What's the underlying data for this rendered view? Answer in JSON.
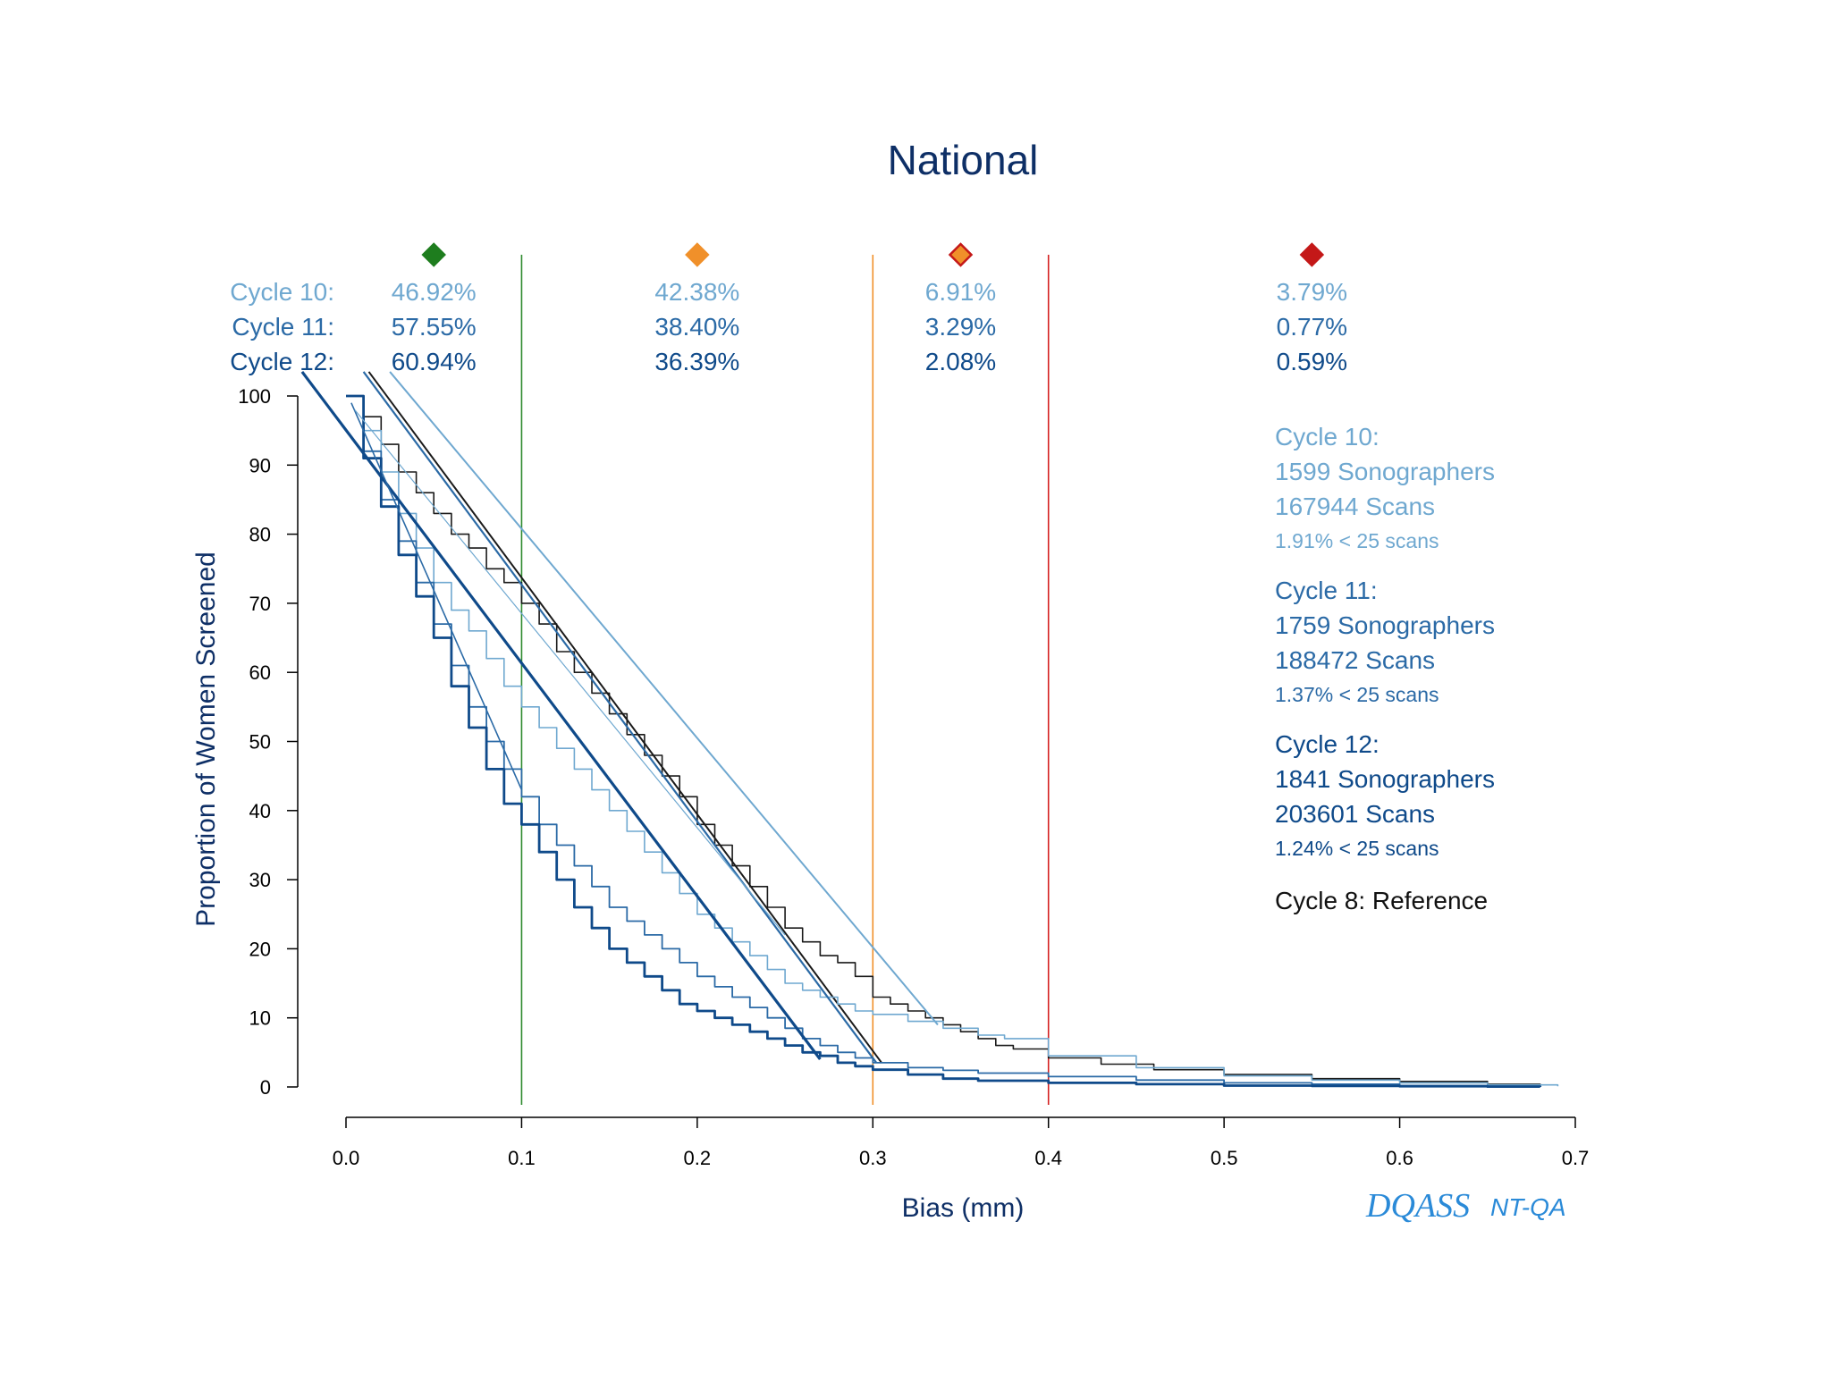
{
  "colors": {
    "cycle8": "#1a1a1a",
    "cycle10": "#6fa8d0",
    "cycle11": "#2b6aa6",
    "cycle12": "#0f4a8a",
    "title": "#0e2f66",
    "brand": "#2a8ad8",
    "line_green": "#2e8b2e",
    "line_orange": "#f0902a",
    "line_red": "#d42020"
  },
  "chart_data": {
    "type": "line",
    "title": "National",
    "xlabel": "Bias (mm)",
    "ylabel": "Proportion of Women Screened",
    "xlim": [
      0,
      0.7
    ],
    "ylim": [
      0,
      100
    ],
    "x_ticks": [
      "0.0",
      "0.1",
      "0.2",
      "0.3",
      "0.4",
      "0.5",
      "0.6",
      "0.7"
    ],
    "y_ticks": [
      "0",
      "10",
      "20",
      "30",
      "40",
      "50",
      "60",
      "70",
      "80",
      "90",
      "100"
    ],
    "thresholds": [
      {
        "x": 0.1,
        "color": "green"
      },
      {
        "x": 0.3,
        "color": "orange"
      },
      {
        "x": 0.4,
        "color": "red"
      }
    ],
    "band_markers": [
      {
        "x": 0.05,
        "fill": "#1e7d1e",
        "stroke": "#1e7d1e",
        "icon": "green-diamond-icon"
      },
      {
        "x": 0.2,
        "fill": "#f0902a",
        "stroke": "#f0902a",
        "icon": "orange-diamond-icon"
      },
      {
        "x": 0.35,
        "fill": "#f0902a",
        "stroke": "#c41818",
        "icon": "orange-red-diamond-icon"
      },
      {
        "x": 0.55,
        "fill": "#c41818",
        "stroke": "#c41818",
        "icon": "red-diamond-icon"
      }
    ],
    "band_table": [
      {
        "label": "Cycle 10:",
        "values": [
          "46.92%",
          "42.38%",
          "6.91%",
          "3.79%"
        ]
      },
      {
        "label": "Cycle 11:",
        "values": [
          "57.55%",
          "38.40%",
          "3.29%",
          "0.77%"
        ]
      },
      {
        "label": "Cycle 12:",
        "values": [
          "60.94%",
          "36.39%",
          "2.08%",
          "0.59%"
        ]
      }
    ],
    "series": [
      {
        "name": "Cycle 8: Reference",
        "colorKey": "cycle8",
        "width": 1.6,
        "points": [
          [
            0.0,
            100
          ],
          [
            0.01,
            97
          ],
          [
            0.02,
            93
          ],
          [
            0.03,
            89
          ],
          [
            0.04,
            86
          ],
          [
            0.05,
            83
          ],
          [
            0.06,
            80
          ],
          [
            0.07,
            78
          ],
          [
            0.08,
            75
          ],
          [
            0.09,
            73
          ],
          [
            0.1,
            70
          ],
          [
            0.11,
            67
          ],
          [
            0.12,
            63
          ],
          [
            0.13,
            60
          ],
          [
            0.14,
            57
          ],
          [
            0.15,
            54
          ],
          [
            0.16,
            51
          ],
          [
            0.17,
            48
          ],
          [
            0.18,
            45
          ],
          [
            0.19,
            42
          ],
          [
            0.2,
            38
          ],
          [
            0.21,
            35
          ],
          [
            0.22,
            32
          ],
          [
            0.23,
            29
          ],
          [
            0.24,
            26
          ],
          [
            0.25,
            23
          ],
          [
            0.26,
            21
          ],
          [
            0.27,
            19
          ],
          [
            0.28,
            18
          ],
          [
            0.29,
            16
          ],
          [
            0.3,
            13
          ],
          [
            0.31,
            12
          ],
          [
            0.32,
            11
          ],
          [
            0.33,
            10
          ],
          [
            0.34,
            9
          ],
          [
            0.35,
            8
          ],
          [
            0.36,
            7
          ],
          [
            0.37,
            6
          ],
          [
            0.38,
            5.5
          ],
          [
            0.4,
            4.2
          ],
          [
            0.43,
            3.3
          ],
          [
            0.46,
            2.5
          ],
          [
            0.5,
            1.8
          ],
          [
            0.55,
            1.2
          ],
          [
            0.6,
            0.8
          ],
          [
            0.65,
            0.4
          ],
          [
            0.68,
            0.2
          ]
        ],
        "fit": [
          [
            0.013,
            103.5
          ],
          [
            0.305,
            3.5
          ]
        ]
      },
      {
        "name": "Cycle 10",
        "colorKey": "cycle10",
        "width": 1.6,
        "points": [
          [
            0.0,
            100
          ],
          [
            0.01,
            95
          ],
          [
            0.02,
            89
          ],
          [
            0.03,
            83
          ],
          [
            0.04,
            78
          ],
          [
            0.05,
            73
          ],
          [
            0.06,
            69
          ],
          [
            0.07,
            66
          ],
          [
            0.08,
            62
          ],
          [
            0.09,
            58
          ],
          [
            0.1,
            55
          ],
          [
            0.11,
            52
          ],
          [
            0.12,
            49
          ],
          [
            0.13,
            46
          ],
          [
            0.14,
            43
          ],
          [
            0.15,
            40
          ],
          [
            0.16,
            37
          ],
          [
            0.17,
            34
          ],
          [
            0.18,
            31
          ],
          [
            0.19,
            28
          ],
          [
            0.2,
            25
          ],
          [
            0.21,
            23
          ],
          [
            0.22,
            21
          ],
          [
            0.23,
            19
          ],
          [
            0.24,
            17
          ],
          [
            0.25,
            15
          ],
          [
            0.26,
            14
          ],
          [
            0.27,
            13
          ],
          [
            0.28,
            12
          ],
          [
            0.29,
            11
          ],
          [
            0.3,
            10.5
          ],
          [
            0.32,
            9.5
          ],
          [
            0.34,
            8.5
          ],
          [
            0.36,
            7.5
          ],
          [
            0.375,
            7
          ],
          [
            0.4,
            4.5
          ],
          [
            0.45,
            2.8
          ],
          [
            0.5,
            1.6
          ],
          [
            0.55,
            1
          ],
          [
            0.6,
            0.6
          ],
          [
            0.65,
            0.3
          ],
          [
            0.69,
            0.1
          ]
        ],
        "fit": [
          [
            0.025,
            103.5
          ],
          [
            0.337,
            9
          ]
        ]
      },
      {
        "name": "Cycle 11",
        "colorKey": "cycle11",
        "width": 1.8,
        "points": [
          [
            0.0,
            100
          ],
          [
            0.01,
            92
          ],
          [
            0.02,
            85
          ],
          [
            0.03,
            79
          ],
          [
            0.04,
            73
          ],
          [
            0.05,
            67
          ],
          [
            0.06,
            61
          ],
          [
            0.07,
            55
          ],
          [
            0.08,
            50
          ],
          [
            0.09,
            46
          ],
          [
            0.1,
            42
          ],
          [
            0.11,
            38
          ],
          [
            0.12,
            35
          ],
          [
            0.13,
            32
          ],
          [
            0.14,
            29
          ],
          [
            0.15,
            26
          ],
          [
            0.16,
            24
          ],
          [
            0.17,
            22
          ],
          [
            0.18,
            20
          ],
          [
            0.19,
            18
          ],
          [
            0.2,
            16
          ],
          [
            0.21,
            14.5
          ],
          [
            0.22,
            13
          ],
          [
            0.23,
            11.5
          ],
          [
            0.24,
            10
          ],
          [
            0.25,
            8.5
          ],
          [
            0.26,
            7
          ],
          [
            0.27,
            6
          ],
          [
            0.28,
            5
          ],
          [
            0.29,
            4.2
          ],
          [
            0.3,
            3.5
          ],
          [
            0.32,
            2.8
          ],
          [
            0.34,
            2.4
          ],
          [
            0.36,
            2
          ],
          [
            0.4,
            1.5
          ],
          [
            0.45,
            1
          ],
          [
            0.5,
            0.6
          ],
          [
            0.55,
            0.4
          ],
          [
            0.6,
            0.2
          ],
          [
            0.65,
            0.1
          ],
          [
            0.68,
            0
          ]
        ],
        "fit": [
          [
            0.01,
            103.5
          ],
          [
            0.302,
            3.5
          ]
        ]
      },
      {
        "name": "Cycle 12",
        "colorKey": "cycle12",
        "width": 2.8,
        "points": [
          [
            0.0,
            100
          ],
          [
            0.01,
            91
          ],
          [
            0.02,
            84
          ],
          [
            0.03,
            77
          ],
          [
            0.04,
            71
          ],
          [
            0.05,
            65
          ],
          [
            0.06,
            58
          ],
          [
            0.07,
            52
          ],
          [
            0.08,
            46
          ],
          [
            0.09,
            41
          ],
          [
            0.1,
            38
          ],
          [
            0.11,
            34
          ],
          [
            0.12,
            30
          ],
          [
            0.13,
            26
          ],
          [
            0.14,
            23
          ],
          [
            0.15,
            20
          ],
          [
            0.16,
            18
          ],
          [
            0.17,
            16
          ],
          [
            0.18,
            14
          ],
          [
            0.19,
            12
          ],
          [
            0.2,
            11
          ],
          [
            0.21,
            10
          ],
          [
            0.22,
            9
          ],
          [
            0.23,
            8
          ],
          [
            0.24,
            7
          ],
          [
            0.25,
            6
          ],
          [
            0.26,
            5
          ],
          [
            0.27,
            4.5
          ],
          [
            0.28,
            3.5
          ],
          [
            0.29,
            3
          ],
          [
            0.3,
            2.5
          ],
          [
            0.32,
            1.8
          ],
          [
            0.34,
            1.2
          ],
          [
            0.36,
            0.9
          ],
          [
            0.4,
            0.6
          ],
          [
            0.45,
            0.4
          ],
          [
            0.5,
            0.2
          ],
          [
            0.55,
            0.15
          ],
          [
            0.6,
            0.1
          ],
          [
            0.65,
            0.05
          ],
          [
            0.68,
            0
          ]
        ],
        "fit": [
          [
            -0.025,
            103.5
          ],
          [
            0.27,
            4
          ]
        ]
      }
    ],
    "extra_fits": [
      {
        "colorKey": "cycle11",
        "width": 1.6,
        "points": [
          [
            0.003,
            99
          ],
          [
            0.1,
            43
          ]
        ]
      },
      {
        "colorKey": "cycle10",
        "width": 1.2,
        "points": [
          [
            0.005,
            98
          ],
          [
            0.25,
            22
          ]
        ]
      }
    ],
    "summary": [
      {
        "colorKey": "cycle10",
        "title": "Cycle 10:",
        "sonographers": "1599 Sonographers",
        "scans": "167944 Scans",
        "small": "1.91% < 25 scans"
      },
      {
        "colorKey": "cycle11",
        "title": "Cycle 11:",
        "sonographers": "1759 Sonographers",
        "scans": "188472 Scans",
        "small": "1.37% < 25 scans"
      },
      {
        "colorKey": "cycle12",
        "title": "Cycle 12:",
        "sonographers": "1841 Sonographers",
        "scans": "203601 Scans",
        "small": "1.24% < 25 scans"
      }
    ],
    "reference_label": "Cycle 8: Reference"
  },
  "brand": {
    "name": "DQASS",
    "product": "NT-QA"
  }
}
